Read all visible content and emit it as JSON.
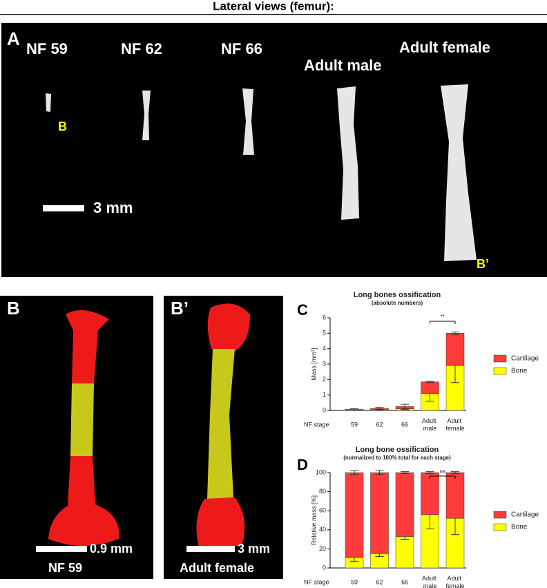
{
  "title": "Lateral views (femur):",
  "panel_a": {
    "label": "A",
    "stages": [
      "NF 59",
      "NF 62",
      "NF 66",
      "Adult male",
      "Adult female"
    ],
    "markers": [
      "B",
      "B’"
    ],
    "scale": "3 mm"
  },
  "panel_b": {
    "label": "B",
    "scale": "0.9 mm",
    "caption": "NF 59"
  },
  "panel_b2": {
    "label": "B’",
    "scale": "3 mm",
    "caption": "Adult female"
  },
  "chart_data": [
    {
      "type": "bar",
      "panel": "C",
      "title": "Long bones ossification",
      "subtitle": "(absolute numbers)",
      "x_label": "NF stage",
      "y_label": "Mass [mm³]",
      "categories": [
        "59",
        "62",
        "66",
        "Adult male",
        "Adult female"
      ],
      "ylim": [
        0,
        6
      ],
      "yticks": [
        0,
        1,
        2,
        3,
        4,
        5,
        6
      ],
      "annotation": "**",
      "series": [
        {
          "name": "Bone",
          "color": "#ffff00",
          "values": [
            0.02,
            0.05,
            0.1,
            1.1,
            2.9
          ],
          "errors": [
            0.01,
            0.02,
            0.05,
            0.5,
            1.1
          ]
        },
        {
          "name": "Cartilage",
          "color": "#ff3b3b",
          "values": [
            0.05,
            0.08,
            0.15,
            0.75,
            2.1
          ],
          "errors": [
            0.05,
            0.06,
            0.15,
            0.05,
            0.08
          ]
        }
      ]
    },
    {
      "type": "bar",
      "panel": "D",
      "title": "Long bone ossification",
      "subtitle": "(normalized to 100% total for each stage)",
      "x_label": "NF stage",
      "y_label": "Relative mass [%]",
      "categories": [
        "59",
        "62",
        "66",
        "Adult male",
        "Adult female"
      ],
      "ylim": [
        0,
        100
      ],
      "yticks": [
        0,
        20,
        40,
        60,
        80,
        100
      ],
      "annotation": "ns",
      "series": [
        {
          "name": "Bone",
          "color": "#ffff00",
          "values": [
            11,
            15,
            33,
            56,
            52
          ],
          "errors": [
            4,
            3,
            3,
            15,
            17
          ]
        },
        {
          "name": "Cartilage",
          "color": "#ff3b3b",
          "values": [
            89,
            85,
            67,
            44,
            48
          ],
          "errors": [
            2,
            2,
            1,
            1,
            1
          ]
        }
      ]
    }
  ]
}
